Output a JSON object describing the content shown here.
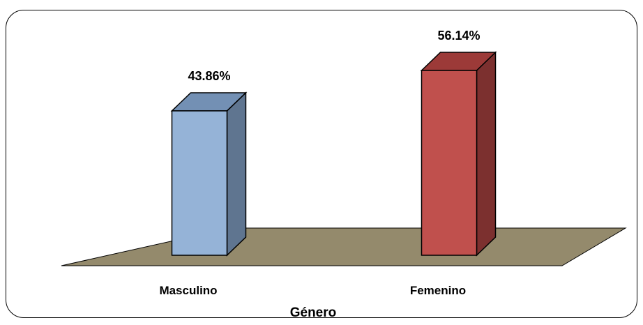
{
  "chart_data": {
    "type": "bar",
    "categories": [
      "Masculino",
      "Femenino"
    ],
    "values": [
      43.86,
      56.14
    ],
    "value_labels": [
      "43.86%",
      "56.14%"
    ],
    "xlabel": "Género",
    "ylabel": "",
    "title": "",
    "grid": false,
    "style": "3d-column",
    "colors": {
      "bars": [
        {
          "front": "#95b3d7",
          "side": "#5f7590",
          "top": "#7390b4"
        },
        {
          "front": "#c0504d",
          "side": "#7c302f",
          "top": "#9c3a38"
        }
      ],
      "floor": "#948a6c"
    }
  }
}
